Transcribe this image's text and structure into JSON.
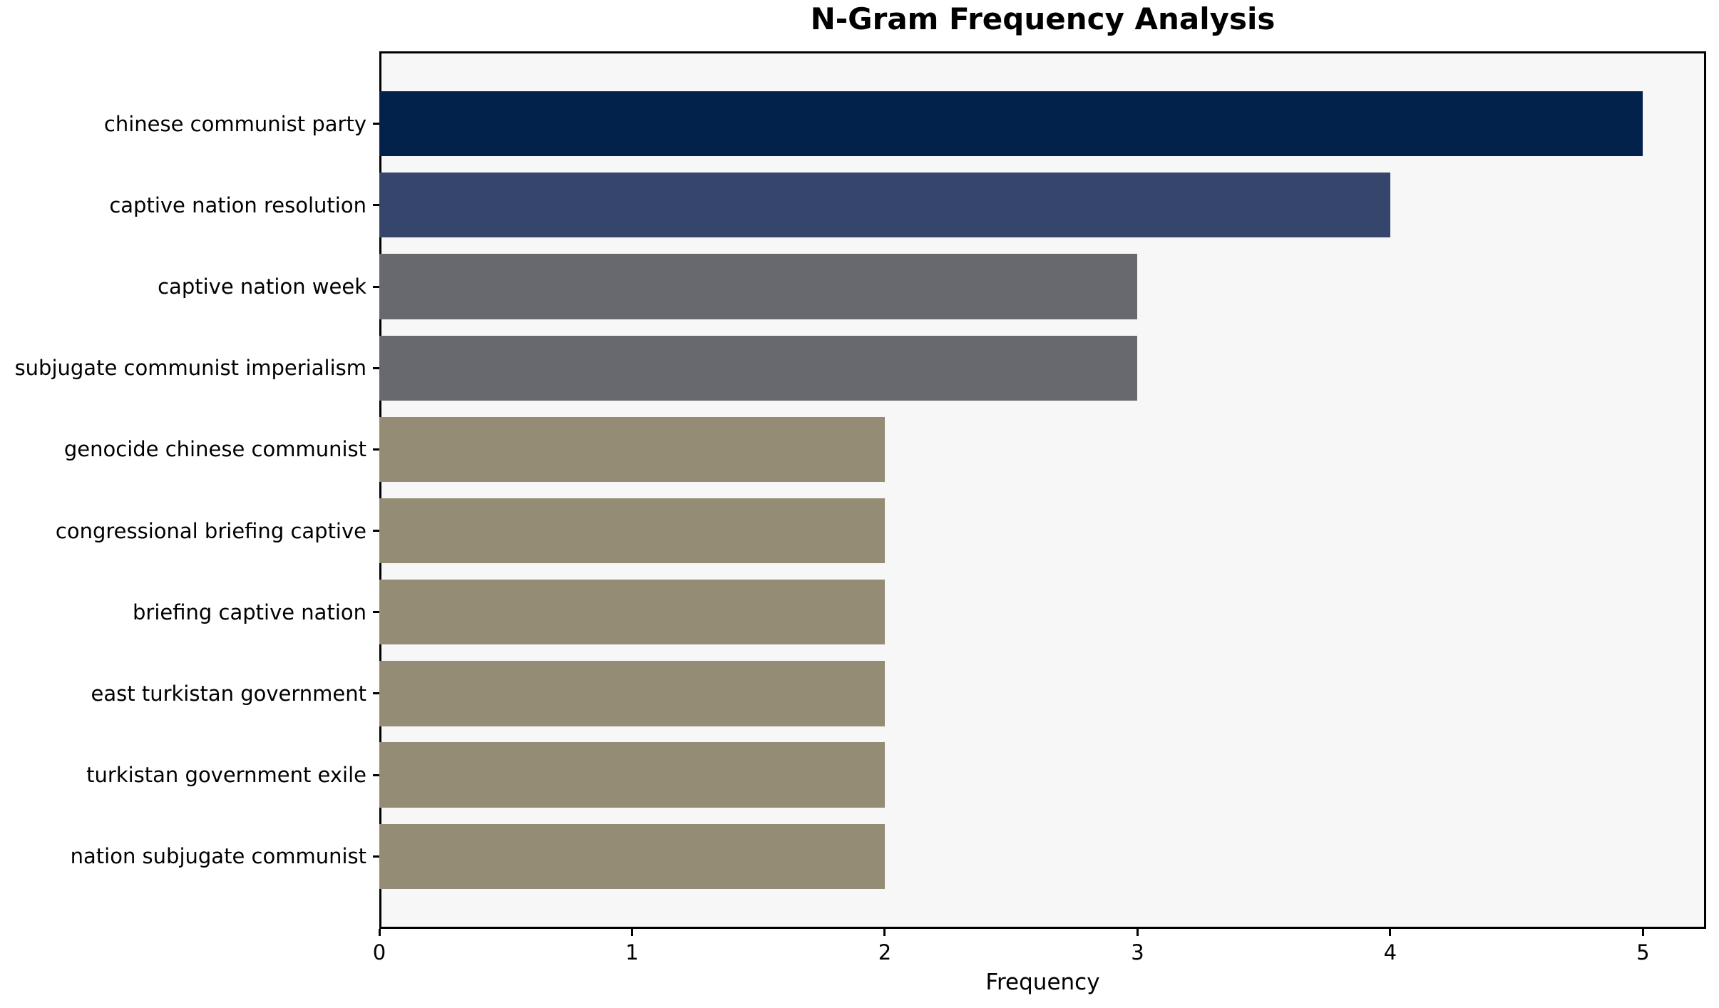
{
  "title": "N-Gram Frequency Analysis",
  "chart_data": {
    "type": "bar",
    "orientation": "horizontal",
    "title": "N-Gram Frequency Analysis",
    "xlabel": "Frequency",
    "ylabel": "",
    "categories": [
      "chinese communist party",
      "captive nation resolution",
      "captive nation week",
      "subjugate communist imperialism",
      "genocide chinese communist",
      "congressional briefing captive",
      "briefing captive nation",
      "east turkistan government",
      "turkistan government exile",
      "nation subjugate communist"
    ],
    "values": [
      5,
      4,
      3,
      3,
      2,
      2,
      2,
      2,
      2,
      2
    ],
    "bar_colors": [
      "#02224c",
      "#36456c",
      "#67696f",
      "#67696f",
      "#948c75",
      "#948c75",
      "#948c75",
      "#948c75",
      "#948c75",
      "#948c75"
    ],
    "xlim": [
      0,
      5.25
    ],
    "x_ticks": [
      0,
      1,
      2,
      3,
      4,
      5
    ],
    "grid": false,
    "legend": null,
    "plot_background": "#f7f7f7",
    "figure_background": "#ffffff",
    "spine_color": "#000000",
    "bar_height_fraction": 0.8
  }
}
